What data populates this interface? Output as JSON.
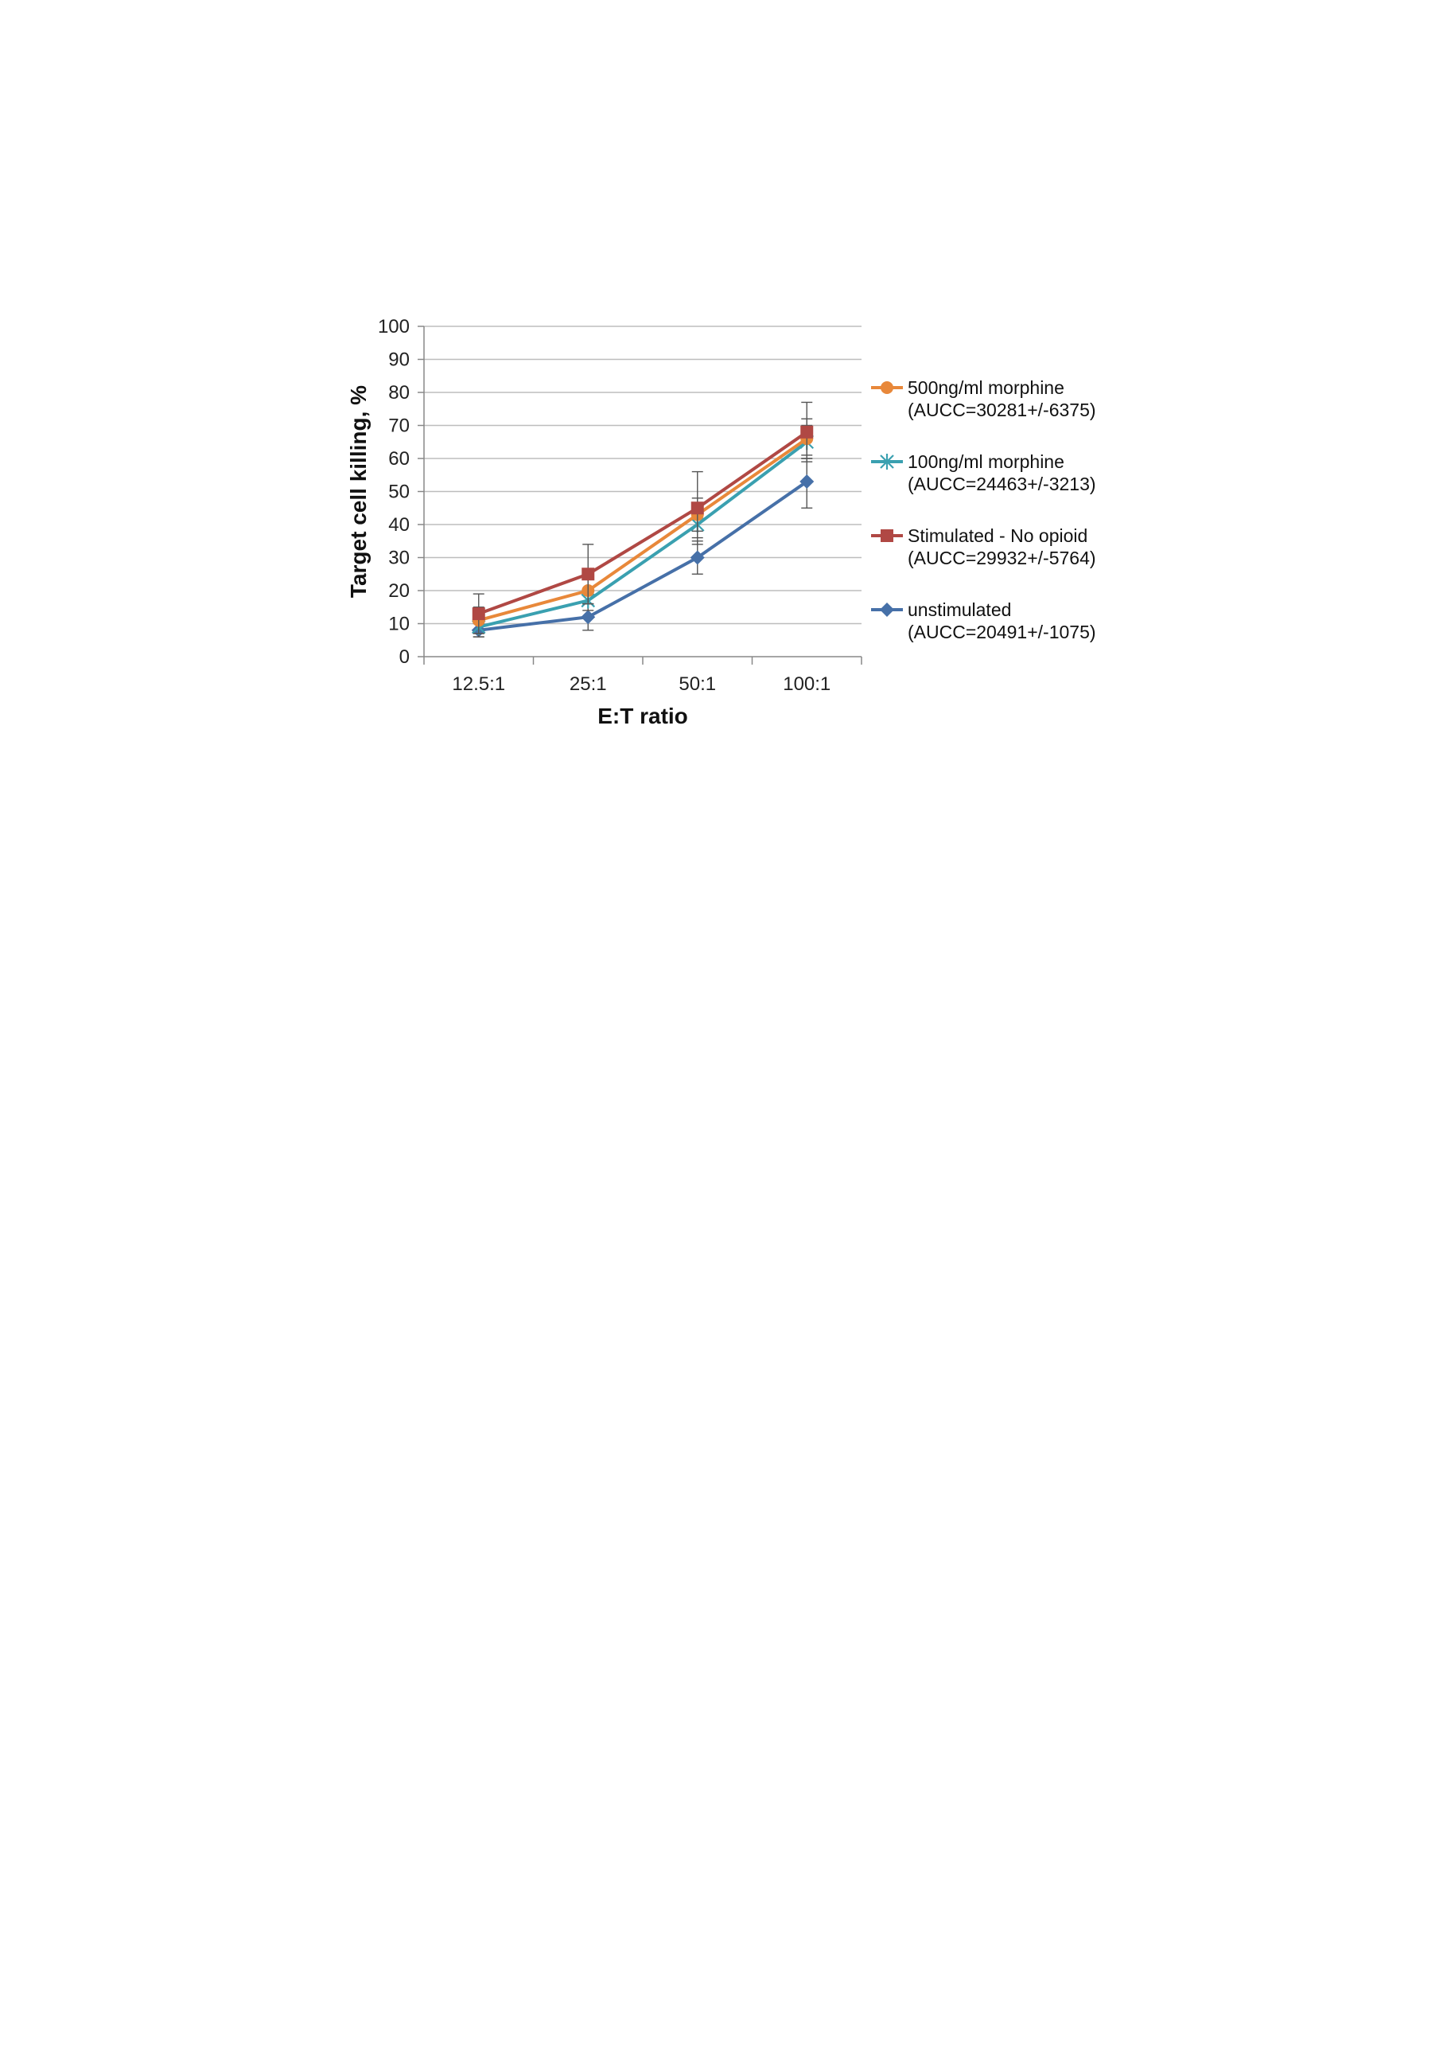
{
  "chart_data": {
    "type": "line",
    "title": "",
    "xlabel": "E:T ratio",
    "ylabel": "Target cell killing, %",
    "categories": [
      "12.5:1",
      "25:1",
      "50:1",
      "100:1"
    ],
    "ylim": [
      0,
      100
    ],
    "yticks": [
      0,
      10,
      20,
      30,
      40,
      50,
      60,
      70,
      80,
      90,
      100
    ],
    "grid": "horizontal",
    "legend_position": "right",
    "series": [
      {
        "name": "500ng/ml morphine",
        "name_line2": "(AUCC=30281+/-6375)",
        "color": "#e8883a",
        "marker": "circle",
        "values": [
          11,
          20,
          43,
          66
        ],
        "error": [
          4,
          4,
          5,
          6
        ]
      },
      {
        "name": "100ng/ml morphine",
        "name_line2": "(AUCC=24463+/-3213)",
        "color": "#3aa0b0",
        "marker": "star",
        "values": [
          9,
          17,
          40,
          65
        ],
        "error": [
          3,
          3,
          4,
          5
        ]
      },
      {
        "name": "Stimulated - No opioid",
        "name_line2": "(AUCC=29932+/-5764)",
        "color": "#b04844",
        "marker": "square",
        "values": [
          13,
          25,
          45,
          68
        ],
        "error": [
          6,
          9,
          11,
          9
        ]
      },
      {
        "name": "unstimulated",
        "name_line2": "(AUCC=20491+/-1075)",
        "color": "#4670a8",
        "marker": "diamond",
        "values": [
          8,
          12,
          30,
          53
        ],
        "error": [
          2,
          4,
          5,
          8
        ]
      }
    ]
  }
}
